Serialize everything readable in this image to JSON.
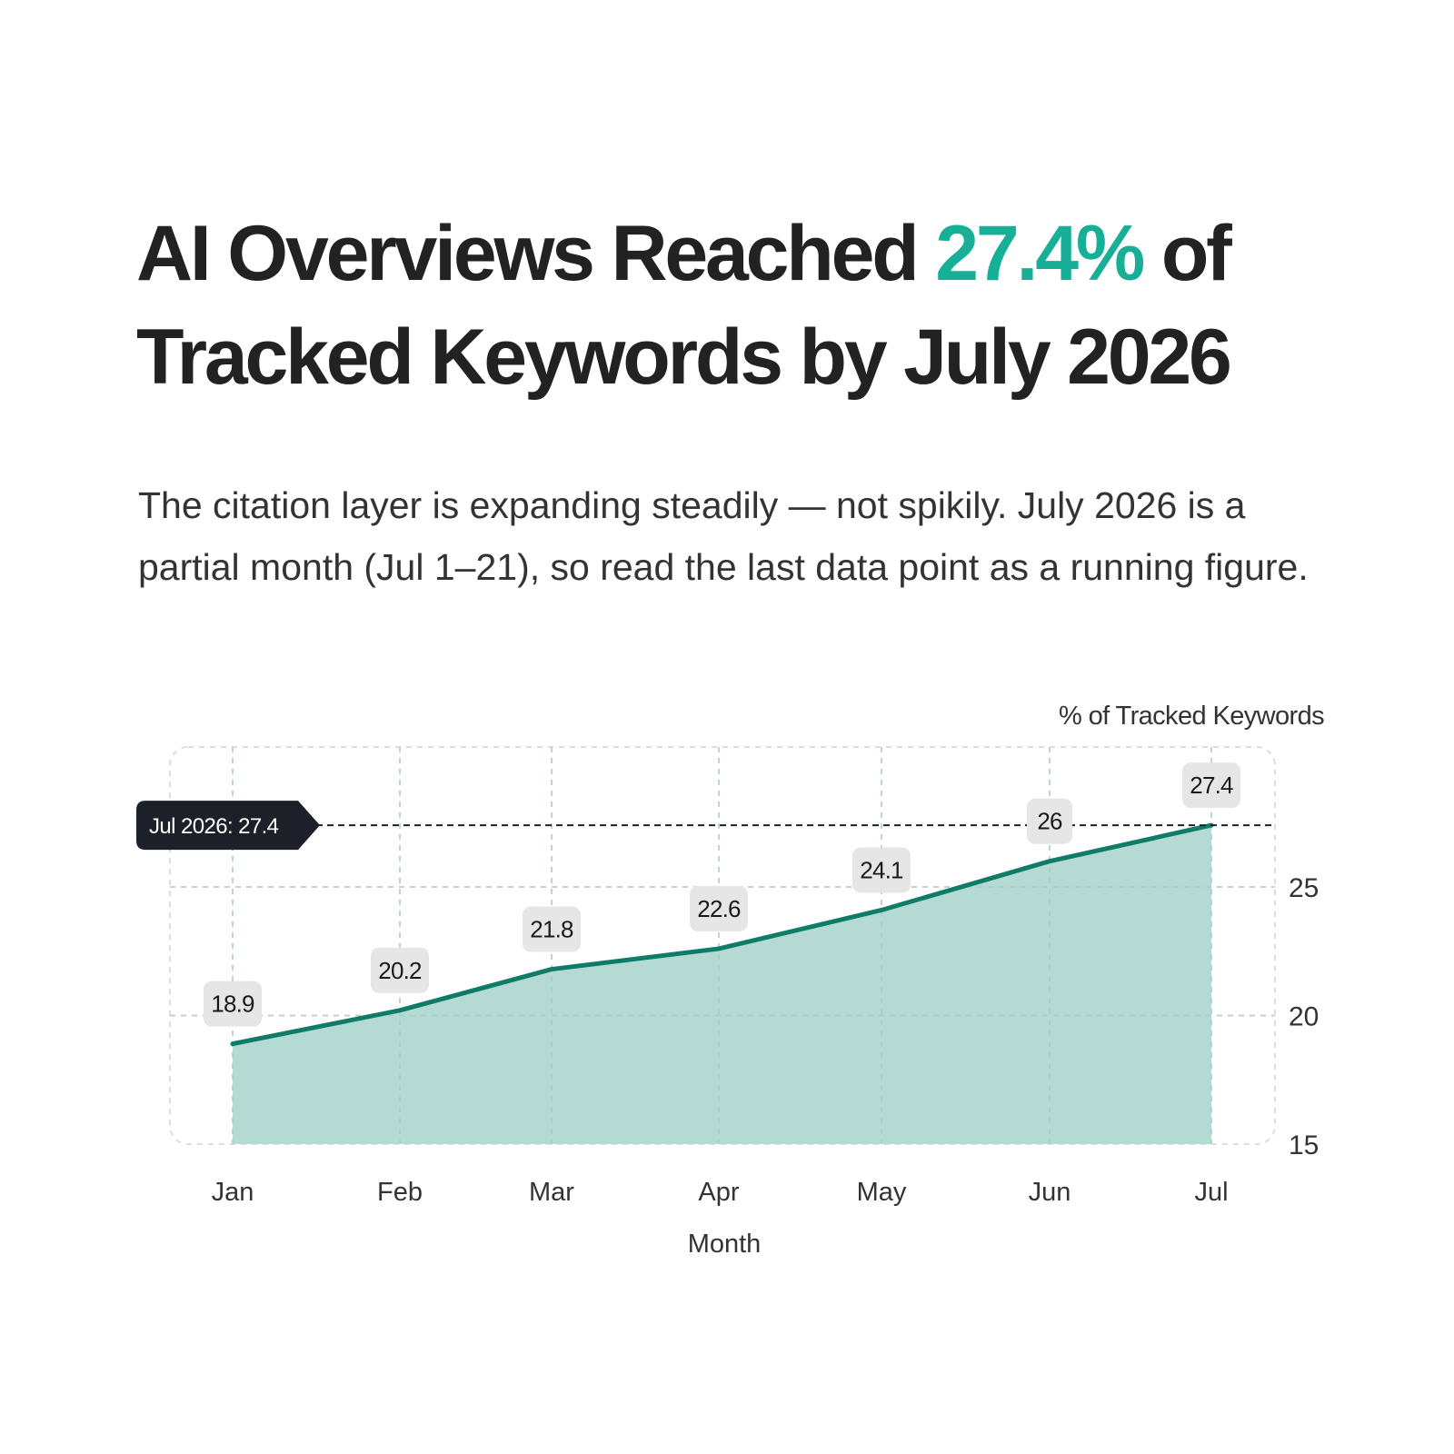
{
  "headline": {
    "before": "AI Overviews Reached ",
    "highlight": "27.4%",
    "after": " of Tracked Keywords by July 2026"
  },
  "subtitle": "The citation layer is expanding steadily — not spikily. July 2026 is a partial month (Jul 1–21), so read the last data point as a running figure.",
  "colors": {
    "accent": "#17b097",
    "line": "#0f7c68",
    "area": "#b5d9d3",
    "label_bg": "#e6e6e6",
    "callout_bg": "#1e2029"
  },
  "chart_data": {
    "type": "area",
    "title": "AI Overviews Reached 27.4% of Tracked Keywords by July 2026",
    "xlabel": "Month",
    "ylabel": "% of Tracked Keywords",
    "categories": [
      "Jan",
      "Feb",
      "Mar",
      "Apr",
      "May",
      "Jun",
      "Jul"
    ],
    "values": [
      18.9,
      20.2,
      21.8,
      22.6,
      24.1,
      26,
      27.4
    ],
    "data_labels": [
      "18.9",
      "20.2",
      "21.8",
      "22.6",
      "24.1",
      "26",
      "27.4"
    ],
    "ylim": [
      15,
      28.6
    ],
    "yticks": [
      15,
      20,
      25
    ],
    "ytick_labels": [
      "15",
      "20",
      "25"
    ],
    "grid": true,
    "reference_line": {
      "value": 27.4,
      "label": "Jul 2026: 27.4"
    }
  }
}
